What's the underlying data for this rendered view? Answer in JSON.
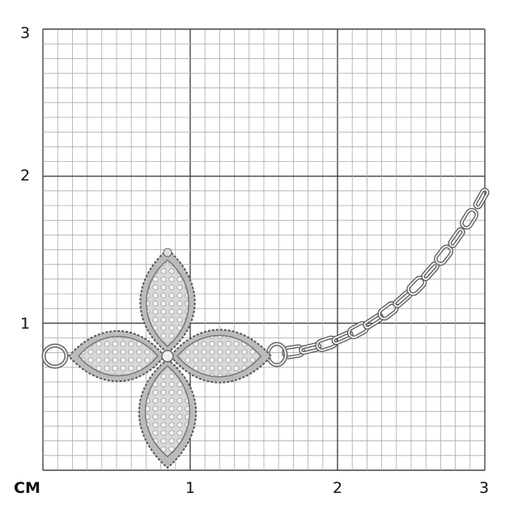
{
  "scale": {
    "unit": "CM",
    "x_ticks": [
      "1",
      "2",
      "3"
    ],
    "y_ticks": [
      "1",
      "2",
      "3"
    ],
    "minor_divisions_per_unit": 10
  },
  "product": {
    "subject": "flower-bracelet",
    "metal_color": "#c8c8c8"
  }
}
